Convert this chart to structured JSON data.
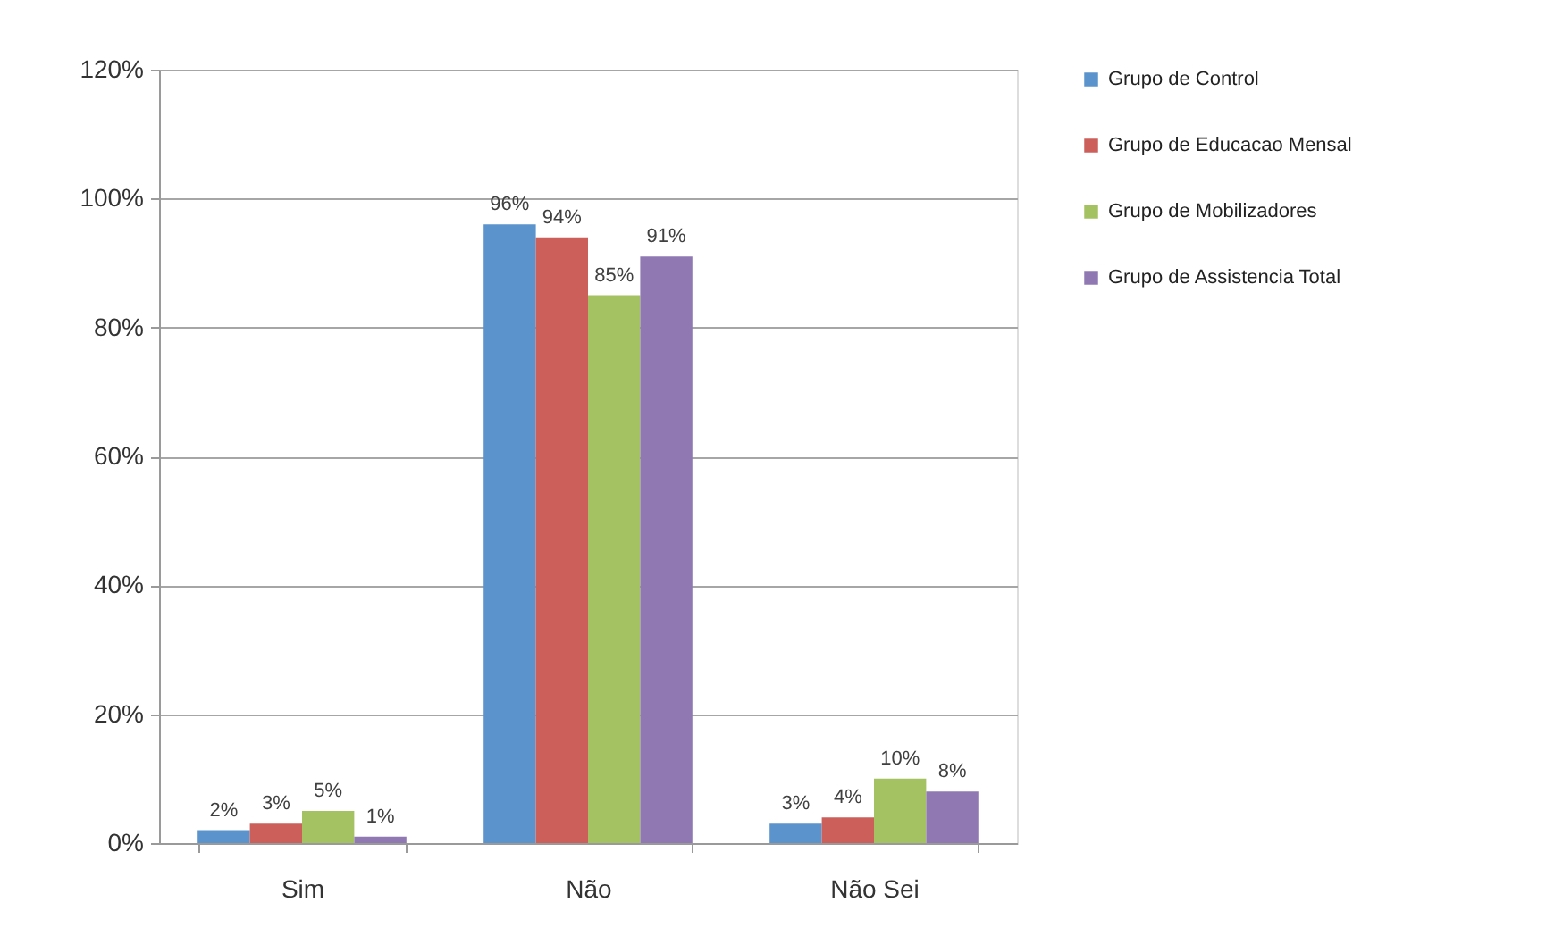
{
  "chart_data": {
    "type": "bar",
    "categories": [
      "Sim",
      "Não",
      "Não Sei"
    ],
    "series": [
      {
        "name": "Grupo de Control",
        "color": "#5b93cc",
        "values": [
          2,
          96,
          3
        ],
        "value_labels": [
          "2%",
          "96%",
          "3%"
        ]
      },
      {
        "name": "Grupo de Educacao Mensal",
        "color": "#cc5f5a",
        "values": [
          3,
          94,
          4
        ],
        "value_labels": [
          "3%",
          "94%",
          "4%"
        ]
      },
      {
        "name": "Grupo de Mobilizadores",
        "color": "#a5c263",
        "values": [
          5,
          85,
          10
        ],
        "value_labels": [
          "5%",
          "85%",
          "10%"
        ]
      },
      {
        "name": "Grupo de Assistencia Total",
        "color": "#9079b3",
        "values": [
          1,
          91,
          8
        ],
        "value_labels": [
          "1%",
          "91%",
          "8%"
        ]
      }
    ],
    "ylim": [
      0,
      120
    ],
    "yticks": [
      {
        "value": 0,
        "label": "0%"
      },
      {
        "value": 20,
        "label": "20%"
      },
      {
        "value": 40,
        "label": "40%"
      },
      {
        "value": 60,
        "label": "60%"
      },
      {
        "value": 80,
        "label": "80%"
      },
      {
        "value": 100,
        "label": "100%"
      },
      {
        "value": 120,
        "label": "120%"
      }
    ],
    "grid": "y",
    "legend": "right"
  }
}
